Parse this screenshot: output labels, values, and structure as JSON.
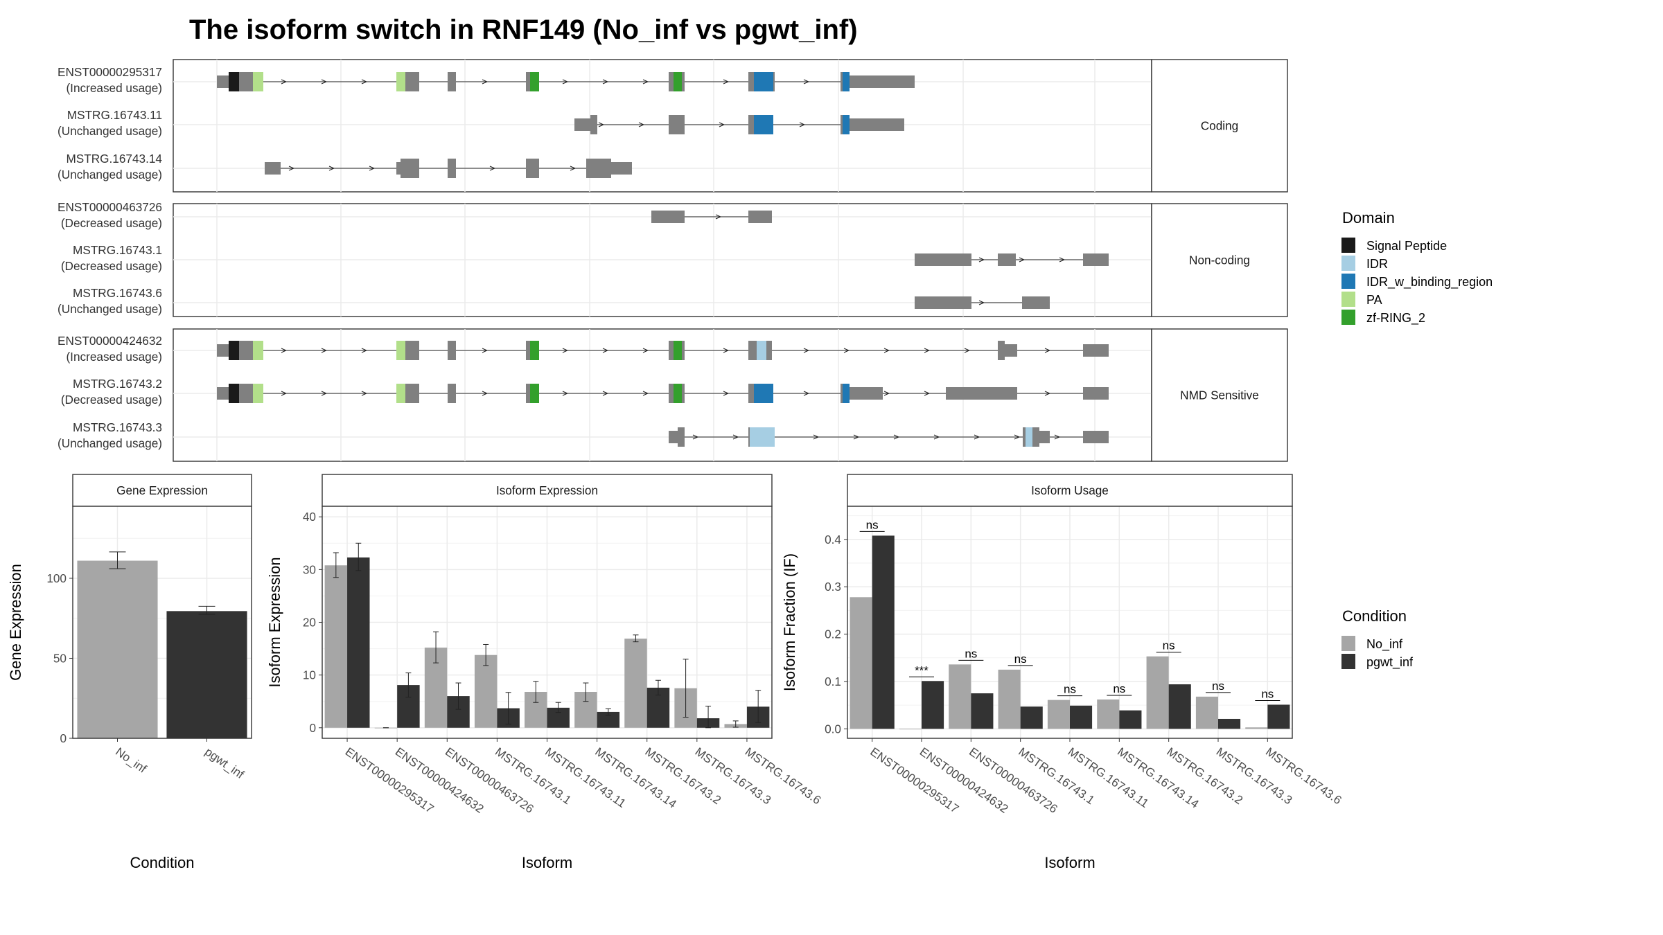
{
  "title": "The isoform switch in RNF149 (No_inf vs pgwt_inf)",
  "colors": {
    "Signal Peptide": "#1a1a1a",
    "IDR": "#a6cee3",
    "IDR_w_binding_region": "#1f78b4",
    "PA": "#b2df8a",
    "zf-RING_2": "#33a02c",
    "exon": "#808080",
    "No_inf": "#a6a6a6",
    "pgwt_inf": "#333333"
  },
  "structure": {
    "genome_range": [
      0,
      1000
    ],
    "groups": [
      {
        "strip": "Coding",
        "isoforms": [
          {
            "id": "ENST00000295317",
            "usage": "(Increased usage)",
            "exons": [
              [
                0,
                25,
                "t"
              ],
              [
                25,
                190,
                "T"
              ],
              [
                375,
                400,
                "T"
              ],
              [
                465,
                480,
                "T"
              ],
              [
                610,
                630,
                "T"
              ],
              [
                770,
                790,
                "T"
              ],
              [
                880,
                895,
                "T"
              ],
              [
                895,
                990,
                "t"
              ]
            ],
            "domains": [
              [
                25,
                45,
                "Signal Peptide"
              ],
              [
                80,
                105,
                "PA"
              ],
              [
                375,
                390,
                "PA"
              ],
              [
                615,
                630,
                "zf-RING_2"
              ],
              [
                780,
                790,
                "zf-RING_2"
              ],
              [
                885,
                895,
                "IDR_w_binding_region"
              ],
              [
                885,
                907,
                "IDR_w_binding_region"
              ],
              [
                900,
                910,
                "IDR_w_binding_region"
              ]
            ]
          },
          {
            "id": "MSTRG.16743.11",
            "usage": "(Unchanged usage)",
            "exons": [
              [
                0,
                0,
                "t"
              ]
            ],
            "domains": []
          },
          {
            "id": "MSTRG.16743.14",
            "usage": "(Unchanged usage)",
            "exons": [],
            "domains": []
          }
        ]
      },
      {
        "strip": "Non-coding",
        "isoforms": [
          {
            "id": "ENST00000463726",
            "usage": "(Decreased usage)",
            "exons": [],
            "domains": []
          },
          {
            "id": "MSTRG.16743.1",
            "usage": "(Decreased usage)",
            "exons": [],
            "domains": []
          },
          {
            "id": "MSTRG.16743.6",
            "usage": "(Unchanged usage)",
            "exons": [],
            "domains": []
          }
        ]
      },
      {
        "strip": "NMD Sensitive",
        "isoforms": [
          {
            "id": "ENST00000424632",
            "usage": "(Increased usage)",
            "exons": [],
            "domains": []
          },
          {
            "id": "MSTRG.16743.2",
            "usage": "(Decreased usage)",
            "exons": [],
            "domains": []
          },
          {
            "id": "MSTRG.16743.3",
            "usage": "(Unchanged usage)",
            "exons": [],
            "domains": []
          }
        ]
      }
    ]
  },
  "legend_domain": {
    "title": "Domain",
    "items": [
      "Signal Peptide",
      "IDR",
      "IDR_w_binding_region",
      "PA",
      "zf-RING_2"
    ]
  },
  "legend_condition": {
    "title": "Condition",
    "items": [
      "No_inf",
      "pgwt_inf"
    ]
  },
  "chart_data": [
    {
      "type": "bar",
      "title": "Gene Expression",
      "xlabel": "Condition",
      "ylabel": "Gene Expression",
      "categories": [
        "No_inf",
        "pgwt_inf"
      ],
      "values": [
        111,
        79.5
      ],
      "error_low": [
        106,
        77.5
      ],
      "error_high": [
        116.5,
        82.5
      ],
      "ylim": [
        0,
        145
      ],
      "yticks": [
        0,
        50,
        100
      ]
    },
    {
      "type": "bar",
      "title": "Isoform Expression",
      "xlabel": "Isoform",
      "ylabel": "Isoform Expression",
      "categories": [
        "ENST00000295317",
        "ENST00000424632",
        "ENST00000463726",
        "MSTRG.16743.1",
        "MSTRG.16743.11",
        "MSTRG.16743.14",
        "MSTRG.16743.2",
        "MSTRG.16743.3",
        "MSTRG.16743.6"
      ],
      "series": [
        {
          "name": "No_inf",
          "values": [
            30.8,
            0,
            15.2,
            13.8,
            6.8,
            6.8,
            16.9,
            7.5,
            0.7
          ],
          "error_low": [
            28.5,
            0,
            12.3,
            11.8,
            4.8,
            5.0,
            16.3,
            2.0,
            0.1
          ],
          "error_high": [
            33.2,
            0,
            18.2,
            15.8,
            8.8,
            8.5,
            17.6,
            13.0,
            1.3
          ]
        },
        {
          "name": "pgwt_inf",
          "values": [
            32.3,
            8.1,
            6.0,
            3.7,
            3.8,
            3.0,
            7.6,
            1.8,
            4.0
          ],
          "error_low": [
            29.8,
            5.8,
            3.5,
            0.7,
            2.9,
            2.4,
            6.2,
            0,
            1.0
          ],
          "error_high": [
            35.0,
            10.4,
            8.5,
            6.7,
            4.8,
            3.6,
            9.0,
            4.1,
            7.1
          ]
        }
      ],
      "ylim": [
        -2,
        42
      ],
      "yticks": [
        0,
        10,
        20,
        30,
        40
      ]
    },
    {
      "type": "bar",
      "title": "Isoform Usage",
      "xlabel": "Isoform",
      "ylabel": "Isoform Fraction (IF)",
      "categories": [
        "ENST00000295317",
        "ENST00000424632",
        "ENST00000463726",
        "MSTRG.16743.1",
        "MSTRG.16743.11",
        "MSTRG.16743.14",
        "MSTRG.16743.2",
        "MSTRG.16743.3",
        "MSTRG.16743.6"
      ],
      "series": [
        {
          "name": "No_inf",
          "values": [
            0.278,
            0.0,
            0.136,
            0.125,
            0.061,
            0.062,
            0.153,
            0.068,
            0.003
          ]
        },
        {
          "name": "pgwt_inf",
          "values": [
            0.408,
            0.101,
            0.075,
            0.047,
            0.049,
            0.039,
            0.094,
            0.021,
            0.051
          ]
        }
      ],
      "significance": [
        "ns",
        "***",
        "ns",
        "ns",
        "ns",
        "ns",
        "ns",
        "ns",
        "ns"
      ],
      "ylim": [
        -0.02,
        0.47
      ],
      "yticks": [
        "0.0",
        "0.1",
        "0.2",
        "0.3",
        "0.4"
      ]
    }
  ]
}
